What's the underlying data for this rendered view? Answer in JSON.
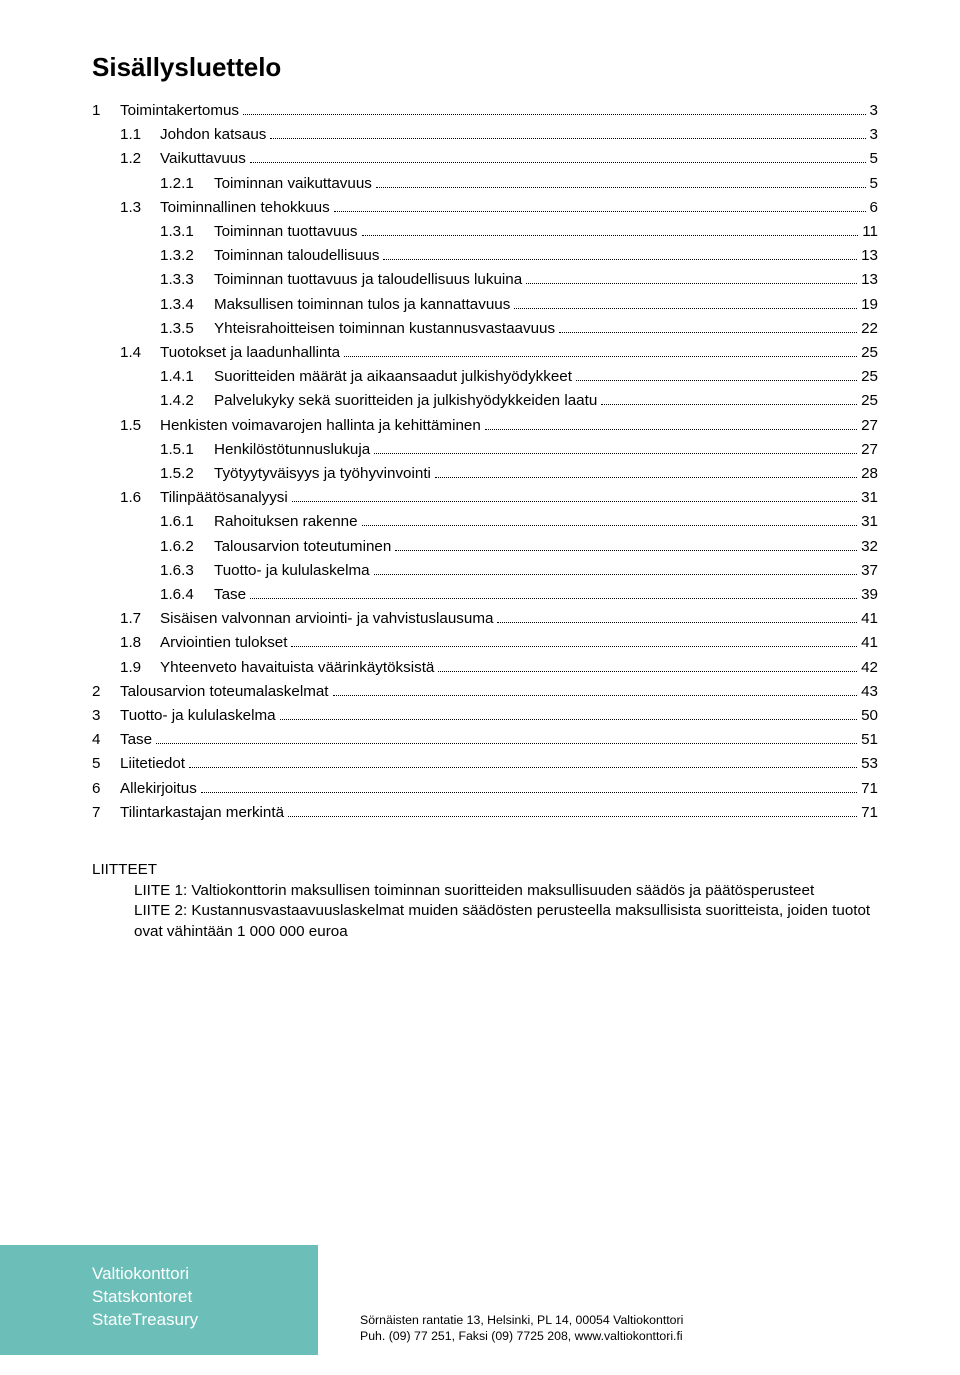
{
  "title": "Sisällysluettelo",
  "toc": [
    {
      "lvl": 1,
      "num": "1",
      "label": "Toimintakertomus",
      "page": "3"
    },
    {
      "lvl": 2,
      "num": "1.1",
      "label": "Johdon katsaus",
      "page": "3"
    },
    {
      "lvl": 2,
      "num": "1.2",
      "label": "Vaikuttavuus",
      "page": "5"
    },
    {
      "lvl": 3,
      "num": "1.2.1",
      "label": "Toiminnan vaikuttavuus",
      "page": "5"
    },
    {
      "lvl": 2,
      "num": "1.3",
      "label": "Toiminnallinen tehokkuus",
      "page": "6"
    },
    {
      "lvl": 3,
      "num": "1.3.1",
      "label": "Toiminnan tuottavuus",
      "page": "11"
    },
    {
      "lvl": 3,
      "num": "1.3.2",
      "label": "Toiminnan taloudellisuus",
      "page": "13"
    },
    {
      "lvl": 3,
      "num": "1.3.3",
      "label": "Toiminnan tuottavuus ja taloudellisuus lukuina",
      "page": "13"
    },
    {
      "lvl": 3,
      "num": "1.3.4",
      "label": "Maksullisen toiminnan tulos ja kannattavuus",
      "page": "19"
    },
    {
      "lvl": 3,
      "num": "1.3.5",
      "label": "Yhteisrahoitteisen toiminnan kustannusvastaavuus",
      "page": "22"
    },
    {
      "lvl": 2,
      "num": "1.4",
      "label": "Tuotokset ja laadunhallinta",
      "page": "25"
    },
    {
      "lvl": 3,
      "num": "1.4.1",
      "label": "Suoritteiden määrät ja aikaansaadut julkishyödykkeet",
      "page": "25"
    },
    {
      "lvl": 3,
      "num": "1.4.2",
      "label": "Palvelukyky sekä suoritteiden ja julkishyödykkeiden laatu",
      "page": "25"
    },
    {
      "lvl": 2,
      "num": "1.5",
      "label": "Henkisten voimavarojen hallinta ja kehittäminen",
      "page": "27"
    },
    {
      "lvl": 3,
      "num": "1.5.1",
      "label": "Henkilöstötunnuslukuja",
      "page": "27"
    },
    {
      "lvl": 3,
      "num": "1.5.2",
      "label": "Työtyytyväisyys ja työhyvinvointi",
      "page": "28"
    },
    {
      "lvl": 2,
      "num": "1.6",
      "label": "Tilinpäätösanalyysi",
      "page": "31"
    },
    {
      "lvl": 3,
      "num": "1.6.1",
      "label": "Rahoituksen rakenne",
      "page": "31"
    },
    {
      "lvl": 3,
      "num": "1.6.2",
      "label": "Talousarvion toteutuminen",
      "page": "32"
    },
    {
      "lvl": 3,
      "num": "1.6.3",
      "label": "Tuotto- ja kululaskelma",
      "page": "37"
    },
    {
      "lvl": 3,
      "num": "1.6.4",
      "label": "Tase",
      "page": "39"
    },
    {
      "lvl": 2,
      "num": "1.7",
      "label": "Sisäisen valvonnan arviointi- ja vahvistuslausuma",
      "page": "41"
    },
    {
      "lvl": 2,
      "num": "1.8",
      "label": "Arviointien tulokset",
      "page": "41"
    },
    {
      "lvl": 2,
      "num": "1.9",
      "label": "Yhteenveto havaituista väärinkäytöksistä",
      "page": "42"
    },
    {
      "lvl": 1,
      "num": "2",
      "label": "Talousarvion toteumalaskelmat",
      "page": "43"
    },
    {
      "lvl": 1,
      "num": "3",
      "label": "Tuotto- ja kululaskelma",
      "page": "50"
    },
    {
      "lvl": 1,
      "num": "4",
      "label": "Tase",
      "page": "51"
    },
    {
      "lvl": 1,
      "num": "5",
      "label": "Liitetiedot",
      "page": "53"
    },
    {
      "lvl": 1,
      "num": "6",
      "label": "Allekirjoitus",
      "page": "71"
    },
    {
      "lvl": 1,
      "num": "7",
      "label": "Tilintarkastajan merkintä",
      "page": "71"
    }
  ],
  "liitteet": {
    "heading": "LIITTEET",
    "items": [
      "LIITE 1: Valtiokonttorin maksullisen toiminnan suoritteiden maksullisuuden säädös ja päätösperusteet",
      "LIITE 2: Kustannusvastaavuuslaskelmat muiden säädösten perusteella maksullisista suoritteista, joiden tuotot ovat vähintään 1 000 000 euroa"
    ]
  },
  "footer": {
    "org": [
      "Valtiokonttori",
      "Statskontoret",
      "StateTreasury"
    ],
    "line1": "Sörnäisten rantatie 13, Helsinki, PL 14, 00054 Valtiokonttori",
    "line2": "Puh. (09) 77 251, Faksi (09) 7725 208, www.valtiokonttori.fi",
    "accent_color": "#6bbfb8"
  }
}
